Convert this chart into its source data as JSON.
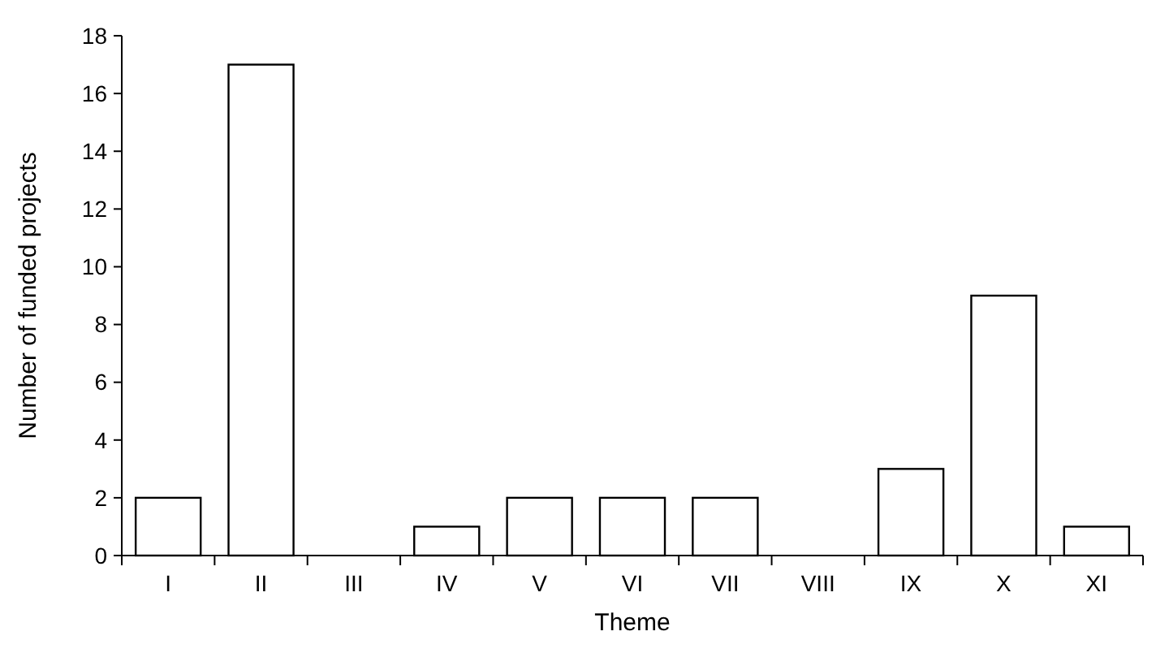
{
  "chart_data": {
    "type": "bar",
    "xlabel": "Theme",
    "ylabel": "Number of funded projects",
    "categories": [
      "I",
      "II",
      "III",
      "IV",
      "V",
      "VI",
      "VII",
      "VIII",
      "IX",
      "X",
      "XI"
    ],
    "values": [
      2,
      17,
      0,
      1,
      2,
      2,
      2,
      0,
      3,
      9,
      1
    ],
    "color": "#ffffff",
    "ylim": [
      0,
      18
    ],
    "yticks": [
      0,
      2,
      4,
      6,
      8,
      10,
      12,
      14,
      16,
      18
    ],
    "grid": false
  }
}
